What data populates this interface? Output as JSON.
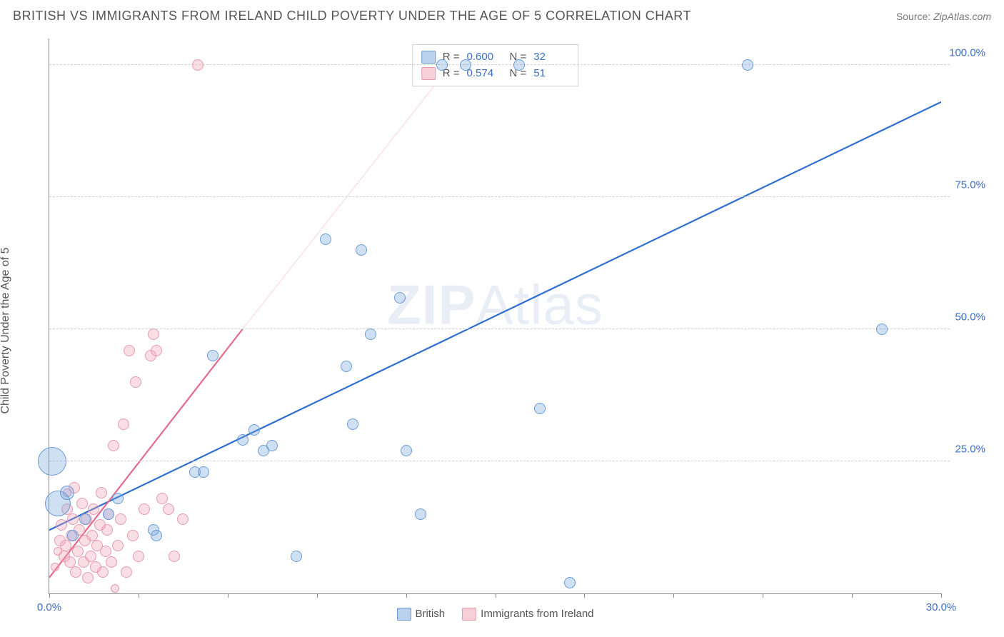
{
  "title": "BRITISH VS IMMIGRANTS FROM IRELAND CHILD POVERTY UNDER THE AGE OF 5 CORRELATION CHART",
  "source_label": "Source:",
  "source_value": "ZipAtlas.com",
  "ylabel": "Child Poverty Under the Age of 5",
  "watermark": "ZIPAtlas",
  "chart": {
    "type": "scatter",
    "background_color": "#ffffff",
    "grid_color": "#d0d0d0",
    "axis_color": "#888888",
    "tick_label_color": "#3b6fc9",
    "xlim": [
      0,
      30
    ],
    "ylim": [
      0,
      105
    ],
    "x_ticks": [
      0,
      15,
      30
    ],
    "x_tick_labels": [
      "0.0%",
      "",
      "30.0%"
    ],
    "x_minor_ticks": [
      3,
      6,
      9,
      12,
      18,
      21,
      24,
      27
    ],
    "y_ticks": [
      25,
      50,
      75,
      100
    ],
    "y_tick_labels": [
      "25.0%",
      "50.0%",
      "75.0%",
      "100.0%"
    ],
    "series": [
      {
        "name": "British",
        "color_fill": "rgba(120,165,220,0.35)",
        "color_stroke": "#6a9bd8",
        "trend_color": "#2f6fd0",
        "trend_dash_color": "#bcd2ef",
        "trend": {
          "x1": 0,
          "y1": 12,
          "x2_solid": 30,
          "y2_solid": 93,
          "x2_dash": 30,
          "y2_dash": 93
        },
        "marker_default_r": 8,
        "points": [
          {
            "x": 0.1,
            "y": 25,
            "r": 20
          },
          {
            "x": 0.3,
            "y": 17,
            "r": 18
          },
          {
            "x": 0.6,
            "y": 19,
            "r": 10
          },
          {
            "x": 0.8,
            "y": 11,
            "r": 8
          },
          {
            "x": 1.2,
            "y": 14,
            "r": 8
          },
          {
            "x": 2.0,
            "y": 15,
            "r": 8
          },
          {
            "x": 2.3,
            "y": 18,
            "r": 8
          },
          {
            "x": 3.5,
            "y": 12,
            "r": 8
          },
          {
            "x": 3.6,
            "y": 11,
            "r": 8
          },
          {
            "x": 4.9,
            "y": 23,
            "r": 8
          },
          {
            "x": 5.2,
            "y": 23,
            "r": 8
          },
          {
            "x": 5.5,
            "y": 45,
            "r": 8
          },
          {
            "x": 6.5,
            "y": 29,
            "r": 8
          },
          {
            "x": 6.9,
            "y": 31,
            "r": 8
          },
          {
            "x": 7.2,
            "y": 27,
            "r": 8
          },
          {
            "x": 7.5,
            "y": 28,
            "r": 8
          },
          {
            "x": 8.3,
            "y": 7,
            "r": 8
          },
          {
            "x": 9.3,
            "y": 67,
            "r": 8
          },
          {
            "x": 10.0,
            "y": 43,
            "r": 8
          },
          {
            "x": 10.2,
            "y": 32,
            "r": 8
          },
          {
            "x": 10.5,
            "y": 65,
            "r": 8
          },
          {
            "x": 10.8,
            "y": 49,
            "r": 8
          },
          {
            "x": 11.8,
            "y": 56,
            "r": 8
          },
          {
            "x": 12.0,
            "y": 27,
            "r": 8
          },
          {
            "x": 12.5,
            "y": 15,
            "r": 8
          },
          {
            "x": 13.2,
            "y": 100,
            "r": 8
          },
          {
            "x": 14.0,
            "y": 100,
            "r": 8
          },
          {
            "x": 15.8,
            "y": 100,
            "r": 8
          },
          {
            "x": 16.5,
            "y": 35,
            "r": 8
          },
          {
            "x": 17.5,
            "y": 2,
            "r": 8
          },
          {
            "x": 23.5,
            "y": 100,
            "r": 8
          },
          {
            "x": 28.0,
            "y": 50,
            "r": 8
          }
        ]
      },
      {
        "name": "Immigrants from Ireland",
        "color_fill": "rgba(240,160,180,0.35)",
        "color_stroke": "#e89ab0",
        "trend_color": "#e66a8a",
        "trend_dash_color": "#f5c8d4",
        "trend": {
          "x1": 0,
          "y1": 3,
          "x2_solid": 6.5,
          "y2_solid": 50,
          "x2_dash": 13.5,
          "y2_dash": 100
        },
        "marker_default_r": 8,
        "points": [
          {
            "x": 0.2,
            "y": 5,
            "r": 6
          },
          {
            "x": 0.3,
            "y": 8,
            "r": 6
          },
          {
            "x": 0.35,
            "y": 10,
            "r": 8
          },
          {
            "x": 0.4,
            "y": 13,
            "r": 8
          },
          {
            "x": 0.5,
            "y": 7,
            "r": 8
          },
          {
            "x": 0.55,
            "y": 9,
            "r": 8
          },
          {
            "x": 0.6,
            "y": 16,
            "r": 8
          },
          {
            "x": 0.6,
            "y": 19,
            "r": 6
          },
          {
            "x": 0.7,
            "y": 6,
            "r": 8
          },
          {
            "x": 0.75,
            "y": 11,
            "r": 8
          },
          {
            "x": 0.8,
            "y": 14,
            "r": 8
          },
          {
            "x": 0.85,
            "y": 20,
            "r": 8
          },
          {
            "x": 0.9,
            "y": 4,
            "r": 8
          },
          {
            "x": 0.95,
            "y": 8,
            "r": 8
          },
          {
            "x": 1.0,
            "y": 12,
            "r": 8
          },
          {
            "x": 1.1,
            "y": 17,
            "r": 8
          },
          {
            "x": 1.15,
            "y": 6,
            "r": 8
          },
          {
            "x": 1.2,
            "y": 10,
            "r": 8
          },
          {
            "x": 1.25,
            "y": 14,
            "r": 8
          },
          {
            "x": 1.3,
            "y": 3,
            "r": 8
          },
          {
            "x": 1.4,
            "y": 7,
            "r": 8
          },
          {
            "x": 1.45,
            "y": 11,
            "r": 8
          },
          {
            "x": 1.5,
            "y": 16,
            "r": 8
          },
          {
            "x": 1.55,
            "y": 5,
            "r": 8
          },
          {
            "x": 1.6,
            "y": 9,
            "r": 8
          },
          {
            "x": 1.7,
            "y": 13,
            "r": 8
          },
          {
            "x": 1.75,
            "y": 19,
            "r": 8
          },
          {
            "x": 1.8,
            "y": 4,
            "r": 8
          },
          {
            "x": 1.9,
            "y": 8,
            "r": 8
          },
          {
            "x": 1.95,
            "y": 12,
            "r": 8
          },
          {
            "x": 2.0,
            "y": 15,
            "r": 8
          },
          {
            "x": 2.1,
            "y": 6,
            "r": 8
          },
          {
            "x": 2.15,
            "y": 28,
            "r": 8
          },
          {
            "x": 2.2,
            "y": 1,
            "r": 6
          },
          {
            "x": 2.3,
            "y": 9,
            "r": 8
          },
          {
            "x": 2.4,
            "y": 14,
            "r": 8
          },
          {
            "x": 2.5,
            "y": 32,
            "r": 8
          },
          {
            "x": 2.6,
            "y": 4,
            "r": 8
          },
          {
            "x": 2.7,
            "y": 46,
            "r": 8
          },
          {
            "x": 2.8,
            "y": 11,
            "r": 8
          },
          {
            "x": 2.9,
            "y": 40,
            "r": 8
          },
          {
            "x": 3.0,
            "y": 7,
            "r": 8
          },
          {
            "x": 3.2,
            "y": 16,
            "r": 8
          },
          {
            "x": 3.4,
            "y": 45,
            "r": 8
          },
          {
            "x": 3.5,
            "y": 49,
            "r": 8
          },
          {
            "x": 3.6,
            "y": 46,
            "r": 8
          },
          {
            "x": 3.8,
            "y": 18,
            "r": 8
          },
          {
            "x": 4.0,
            "y": 16,
            "r": 8
          },
          {
            "x": 4.2,
            "y": 7,
            "r": 8
          },
          {
            "x": 4.5,
            "y": 14,
            "r": 8
          },
          {
            "x": 5.0,
            "y": 100,
            "r": 8
          }
        ]
      }
    ]
  },
  "legend_top": {
    "rows": [
      {
        "swatch": "blue",
        "r_label": "R =",
        "r_value": "0.600",
        "n_label": "N =",
        "n_value": "32"
      },
      {
        "swatch": "pink",
        "r_label": "R =",
        "r_value": "0.574",
        "n_label": "N =",
        "n_value": "51"
      }
    ]
  },
  "legend_bottom": [
    {
      "swatch": "blue",
      "label": "British"
    },
    {
      "swatch": "pink",
      "label": "Immigrants from Ireland"
    }
  ]
}
